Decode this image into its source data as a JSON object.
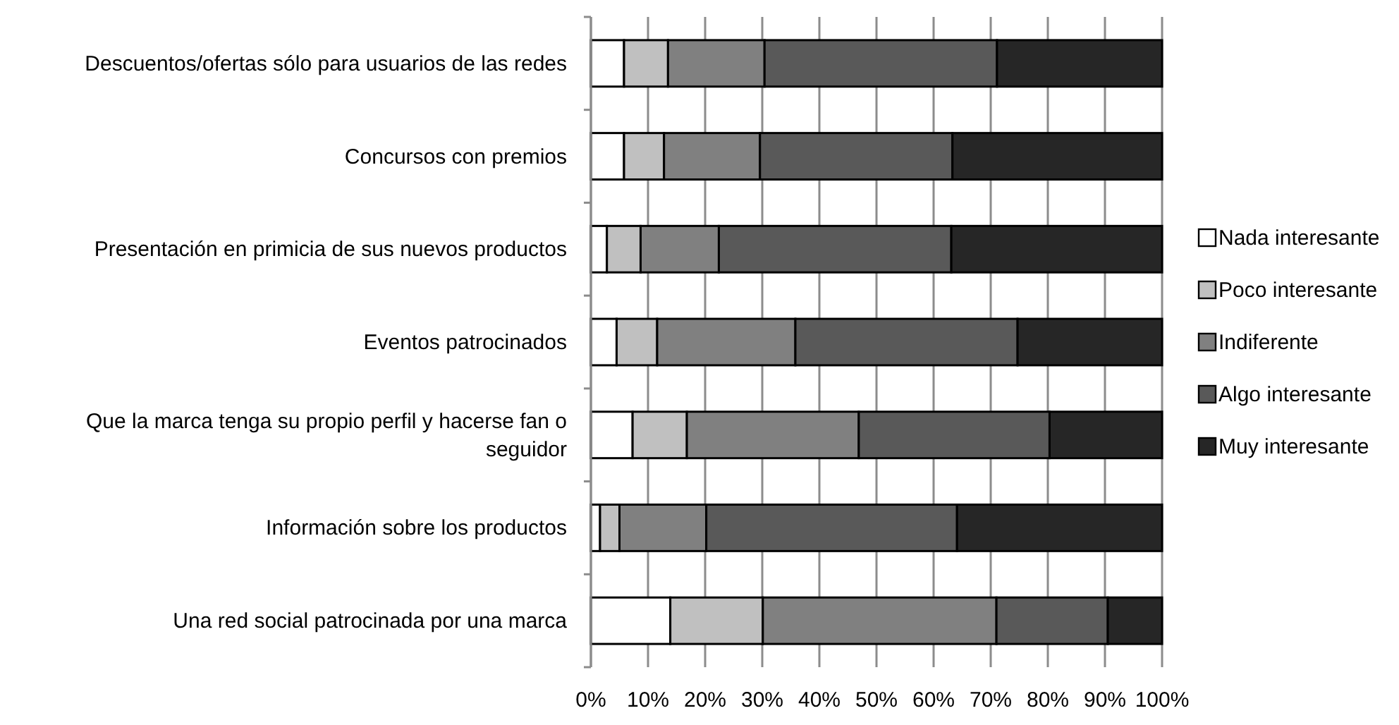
{
  "chart_data": {
    "type": "bar",
    "orientation": "horizontal",
    "stacked": true,
    "categories": [
      "Descuentos/ofertas sólo para usuarios de las redes",
      "Concursos con premios",
      "Presentación en primicia de sus nuevos productos",
      "Eventos patrocinados",
      "Que la marca tenga su propio perfil y hacerse fan o seguidor",
      "Información sobre los productos",
      "Una red social patrocinada por una marca"
    ],
    "series": [
      {
        "name": "Nada interesante",
        "color": "#ffffff",
        "values": [
          5.8,
          5.8,
          2.8,
          4.5,
          7.3,
          1.6,
          13.9
        ]
      },
      {
        "name": "Poco interesante",
        "color": "#c0c0c0",
        "values": [
          7.7,
          7.0,
          5.9,
          7.1,
          9.5,
          3.4,
          16.2
        ]
      },
      {
        "name": "Indiferente",
        "color": "#808080",
        "values": [
          16.9,
          16.8,
          13.7,
          24.2,
          30.1,
          15.2,
          40.9
        ]
      },
      {
        "name": "Algo interesante",
        "color": "#595959",
        "values": [
          40.7,
          33.7,
          40.7,
          38.9,
          33.4,
          43.9,
          19.5
        ]
      },
      {
        "name": "Muy interesante",
        "color": "#262626",
        "values": [
          28.9,
          36.7,
          36.9,
          25.3,
          19.7,
          35.9,
          9.5
        ]
      }
    ],
    "xlim": [
      0,
      100
    ],
    "xticks": [
      {
        "value": 0,
        "label": "0%"
      },
      {
        "value": 10,
        "label": "10%"
      },
      {
        "value": 20,
        "label": "20%"
      },
      {
        "value": 30,
        "label": "30%"
      },
      {
        "value": 40,
        "label": "40%"
      },
      {
        "value": 50,
        "label": "50%"
      },
      {
        "value": 60,
        "label": "60%"
      },
      {
        "value": 70,
        "label": "70%"
      },
      {
        "value": 80,
        "label": "80%"
      },
      {
        "value": 90,
        "label": "90%"
      },
      {
        "value": 100,
        "label": "100%"
      }
    ],
    "grid": "x",
    "legend": "right"
  }
}
